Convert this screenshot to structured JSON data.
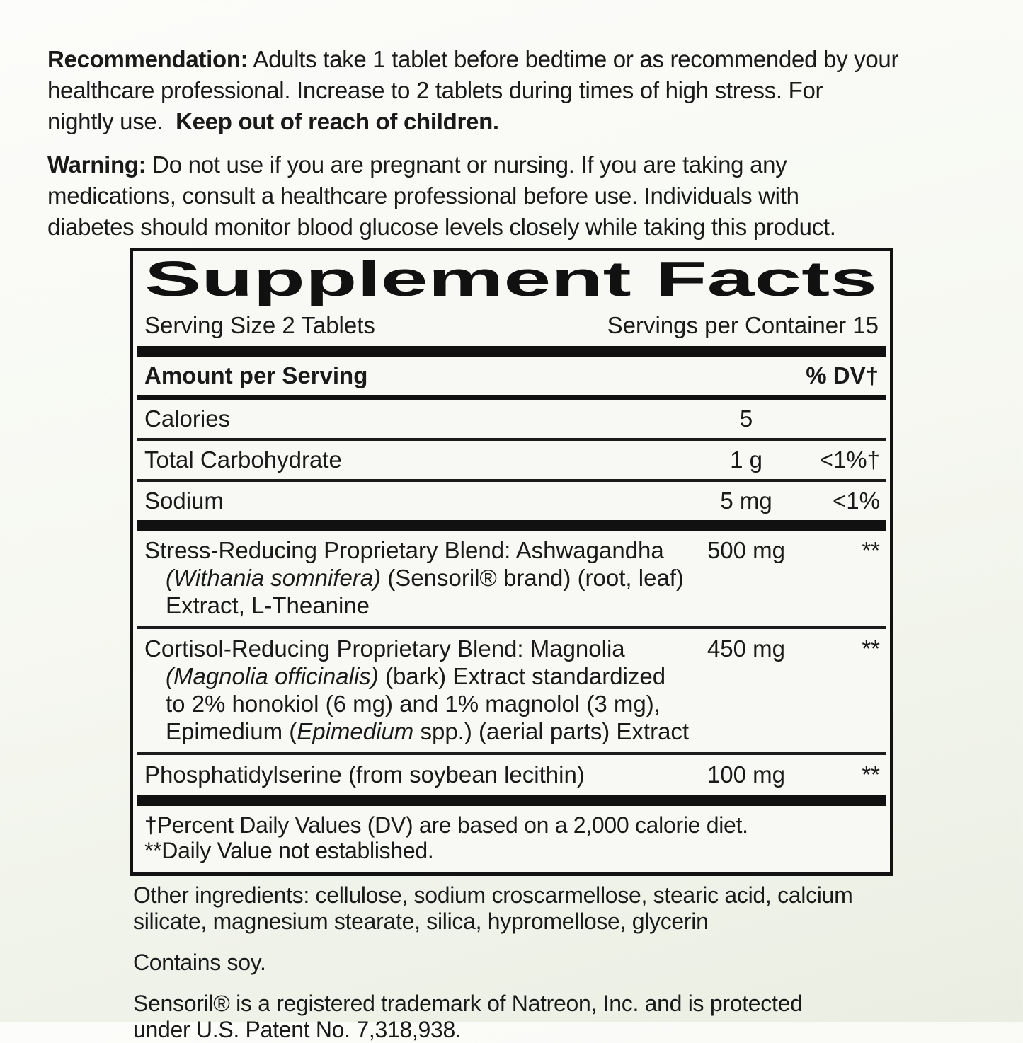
{
  "colors": {
    "ink": "#111111",
    "background_top": "#fcfcfa",
    "background_bottom": "#eaeee2",
    "panel_background": "#f8f9f4"
  },
  "page": {
    "recommendation": {
      "lines": [
        [
          {
            "t": "Recommendation:",
            "b": true
          },
          {
            "t": " Adults take 1 tablet before bedtime or as recommended by your"
          }
        ],
        [
          {
            "t": "healthcare professional. Increase to 2 tablets during times of high stress. For"
          }
        ],
        [
          {
            "t": "nightly use.  "
          },
          {
            "t": "Keep out of reach of children.",
            "b": true
          }
        ]
      ]
    },
    "warning": {
      "lines": [
        [
          {
            "t": "Warning:",
            "b": true
          },
          {
            "t": " Do not use if you are pregnant or nursing. If you are taking any"
          }
        ],
        [
          {
            "t": "medications, consult a healthcare professional before use. Individuals with"
          }
        ],
        [
          {
            "t": "diabetes should monitor blood glucose levels closely while taking this product."
          }
        ]
      ]
    }
  },
  "panel": {
    "title": "Supplement Facts",
    "serving_size": "Serving Size 2 Tablets",
    "servings_per_container": "Servings per Container 15",
    "amount_header": "Amount per Serving",
    "dv_header": "% DV†",
    "nutrients": [
      {
        "name": "Calories",
        "amount": "5",
        "dv": ""
      },
      {
        "name": "Total Carbohydrate",
        "amount": "1 g",
        "dv": "<1%†"
      },
      {
        "name": "Sodium",
        "amount": "5 mg",
        "dv": "<1%"
      }
    ],
    "blends": [
      {
        "name": "Stress-Reducing Proprietary Blend: Ashwagandha",
        "amount": "500 mg",
        "dv": "**",
        "details": [
          [
            {
              "t": "(Withania somnifera)",
              "i": true
            },
            {
              "t": " (Sensoril® brand) (root, leaf)"
            }
          ],
          [
            {
              "t": "Extract, L-Theanine"
            }
          ]
        ]
      },
      {
        "name": "Cortisol-Reducing Proprietary Blend: Magnolia",
        "amount": "450 mg",
        "dv": "**",
        "details": [
          [
            {
              "t": "(Magnolia officinalis)",
              "i": true
            },
            {
              "t": " (bark) Extract standardized"
            }
          ],
          [
            {
              "t": "to 2% honokiol (6 mg) and 1% magnolol (3 mg),"
            }
          ],
          [
            {
              "t": "Epimedium ("
            },
            {
              "t": "Epimedium",
              "i": true
            },
            {
              "t": " spp.) (aerial parts) Extract"
            }
          ]
        ]
      },
      {
        "name": "Phosphatidylserine (from soybean lecithin)",
        "amount": "100 mg",
        "dv": "**",
        "details": []
      }
    ],
    "footnote_lines": [
      [
        {
          "t": "†Percent Daily Values (DV) are based on a 2,000 calorie diet."
        }
      ],
      [
        {
          "t": "**Daily Value not established."
        }
      ]
    ]
  },
  "footer": {
    "other_ingredients_lines": [
      [
        {
          "t": "Other ingredients: cellulose, sodium croscarmellose, stearic acid, calcium"
        }
      ],
      [
        {
          "t": "silicate, magnesium stearate, silica, hypromellose, glycerin"
        }
      ]
    ],
    "contains_lines": [
      [
        {
          "t": "Contains soy."
        }
      ]
    ],
    "trademark_lines": [
      [
        {
          "t": "Sensoril® is a registered trademark of Natreon, Inc. and is protected"
        }
      ],
      [
        {
          "t": "under U.S. Patent No. 7,318,938."
        }
      ]
    ]
  }
}
